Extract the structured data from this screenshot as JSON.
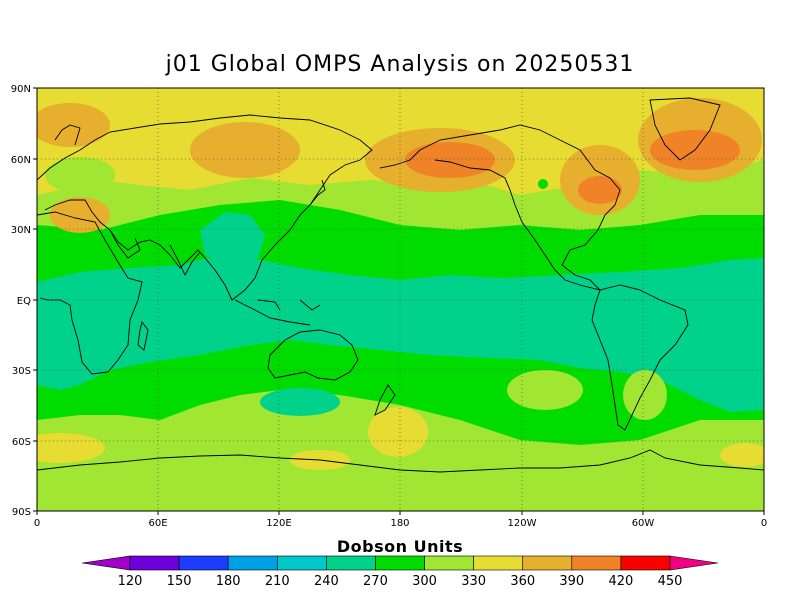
{
  "title": "j01 Global OMPS Analysis on 20250531",
  "colorbar": {
    "title": "Dobson Units",
    "labels": [
      "120",
      "150",
      "180",
      "210",
      "240",
      "270",
      "300",
      "330",
      "360",
      "390",
      "420",
      "450"
    ],
    "colors": [
      "#a000c8",
      "#6e00dc",
      "#1e3cff",
      "#00a0e6",
      "#00c8c8",
      "#00d28c",
      "#00dc00",
      "#a0e632",
      "#e6dc32",
      "#e6af2d",
      "#f08228",
      "#fa0000",
      "#f00082"
    ]
  },
  "axes": {
    "lat_labels": [
      "90N",
      "60N",
      "30N",
      "EQ",
      "30S",
      "60S",
      "90S"
    ],
    "lon_labels": [
      "0",
      "60E",
      "120E",
      "180",
      "120W",
      "60W",
      "0"
    ]
  },
  "chart_data": {
    "type": "heatmap",
    "title": "j01 Global OMPS Analysis on 20250531",
    "colorbar_label": "Dobson Units",
    "units": "DU",
    "levels": [
      120,
      150,
      180,
      210,
      240,
      270,
      300,
      330,
      360,
      390,
      420,
      450
    ],
    "lat_range": [
      -90,
      90
    ],
    "lon_range": [
      0,
      360
    ],
    "zonal_bands": [
      {
        "lat_range": [
          60,
          90
        ],
        "value_range": [
          330,
          390
        ]
      },
      {
        "lat_range": [
          30,
          60
        ],
        "value_range": [
          330,
          420
        ]
      },
      {
        "lat_range": [
          15,
          30
        ],
        "value_range": [
          270,
          330
        ]
      },
      {
        "lat_range": [
          -25,
          15
        ],
        "value_range": [
          270,
          300
        ]
      },
      {
        "lat_range": [
          -55,
          -25
        ],
        "value_range": [
          300,
          330
        ]
      },
      {
        "lat_range": [
          -70,
          -55
        ],
        "value_range": [
          300,
          360
        ]
      },
      {
        "lat_range": [
          -90,
          -70
        ],
        "value_range": [
          330,
          360
        ]
      }
    ],
    "grid": true
  }
}
